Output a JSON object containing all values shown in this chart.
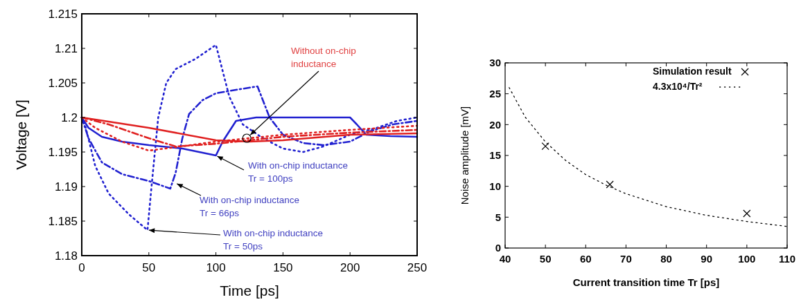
{
  "chart_data": [
    {
      "type": "line",
      "xlabel": "Time [ps]",
      "ylabel": "Voltage [V]",
      "xlim": [
        0,
        250
      ],
      "ylim": [
        1.18,
        1.215
      ],
      "xticks": [
        0,
        50,
        100,
        150,
        200,
        250
      ],
      "yticks": [
        1.18,
        1.185,
        1.19,
        1.195,
        1.2,
        1.205,
        1.21,
        1.215
      ],
      "grid": false,
      "marker": "none",
      "series": [
        {
          "color": "#2020d0",
          "line_style": "solid",
          "x": [
            0,
            5,
            15,
            30,
            50,
            75,
            100,
            105,
            115,
            130,
            150,
            175,
            200,
            205,
            212,
            230,
            250
          ],
          "values": [
            1.2,
            1.1985,
            1.1972,
            1.1965,
            1.196,
            1.1955,
            1.1945,
            1.1965,
            1.1995,
            1.2,
            1.2,
            1.2,
            1.2,
            1.199,
            1.1975,
            1.1973,
            1.1972
          ]
        },
        {
          "color": "#2020d0",
          "line_style": "dashdot",
          "x": [
            0,
            5,
            15,
            30,
            50,
            66,
            70,
            75,
            80,
            90,
            100,
            115,
            131,
            140,
            150,
            165,
            180,
            200,
            215,
            232,
            250
          ],
          "values": [
            1.2,
            1.197,
            1.1935,
            1.1918,
            1.1908,
            1.1897,
            1.192,
            1.197,
            1.2005,
            1.2025,
            1.2035,
            1.204,
            1.2045,
            1.2,
            1.1975,
            1.1963,
            1.196,
            1.1965,
            1.198,
            1.199,
            1.1995
          ]
        },
        {
          "color": "#2020d0",
          "line_style": "dotted",
          "x": [
            0,
            3,
            10,
            20,
            35,
            49,
            52,
            57,
            63,
            70,
            85,
            100,
            110,
            120,
            135,
            150,
            165,
            180,
            200,
            220,
            235,
            250
          ],
          "values": [
            1.2,
            1.1985,
            1.193,
            1.189,
            1.186,
            1.1837,
            1.19,
            1.2,
            1.205,
            1.207,
            1.2085,
            1.2105,
            1.203,
            1.199,
            1.197,
            1.1955,
            1.195,
            1.1958,
            1.1975,
            1.1985,
            1.1995,
            1.2
          ]
        },
        {
          "color": "#e02020",
          "line_style": "solid",
          "x": [
            0,
            50,
            100,
            125,
            150,
            200,
            250
          ],
          "values": [
            1.2,
            1.1985,
            1.1967,
            1.1965,
            1.1967,
            1.1975,
            1.1977
          ]
        },
        {
          "color": "#e02020",
          "line_style": "dashdot",
          "x": [
            0,
            20,
            50,
            70,
            100,
            150,
            200,
            250
          ],
          "values": [
            1.2,
            1.199,
            1.197,
            1.1958,
            1.1962,
            1.1972,
            1.1978,
            1.1982
          ]
        },
        {
          "color": "#e02020",
          "line_style": "dotted",
          "x": [
            0,
            10,
            30,
            50,
            70,
            100,
            150,
            200,
            250
          ],
          "values": [
            1.2,
            1.1985,
            1.1965,
            1.1952,
            1.1957,
            1.1965,
            1.1975,
            1.1982,
            1.1988
          ]
        }
      ],
      "annotations": [
        {
          "text": "Without on-chip\ninductance",
          "x": 123,
          "y": 1.197
        },
        {
          "text": "With on-chip inductance\nTr = 100ps",
          "x": 100,
          "y": 1.1945
        },
        {
          "text": "With on-chip inductance\nTr = 66ps",
          "x": 70,
          "y": 1.1905
        },
        {
          "text": "With on-chip inductance\nTr = 50ps",
          "x": 49,
          "y": 1.1837
        }
      ]
    },
    {
      "type": "scatter",
      "xlabel": "Current transition time Tr [ps]",
      "ylabel": "Noise amplitude [mV]",
      "xlim": [
        40,
        110
      ],
      "ylim": [
        0,
        30
      ],
      "xticks": [
        40,
        50,
        60,
        70,
        80,
        90,
        100,
        110
      ],
      "yticks": [
        0,
        5,
        10,
        15,
        20,
        25,
        30
      ],
      "grid": false,
      "legend": "top right",
      "series": [
        {
          "name": "Simulation result",
          "marker": "cross",
          "color": "#000000",
          "x": [
            50,
            66,
            100
          ],
          "values": [
            16.5,
            10.3,
            5.6
          ]
        },
        {
          "name": "4.3x10⁴/Tr²",
          "type": "line",
          "line_style": "dotted",
          "marker": "none",
          "color": "#000000",
          "x": [
            41,
            45,
            50,
            55,
            60,
            65,
            70,
            80,
            90,
            100,
            110
          ],
          "values": [
            26,
            21.2,
            17.2,
            14.2,
            11.9,
            10.2,
            8.8,
            6.7,
            5.3,
            4.3,
            3.5
          ]
        }
      ]
    }
  ]
}
